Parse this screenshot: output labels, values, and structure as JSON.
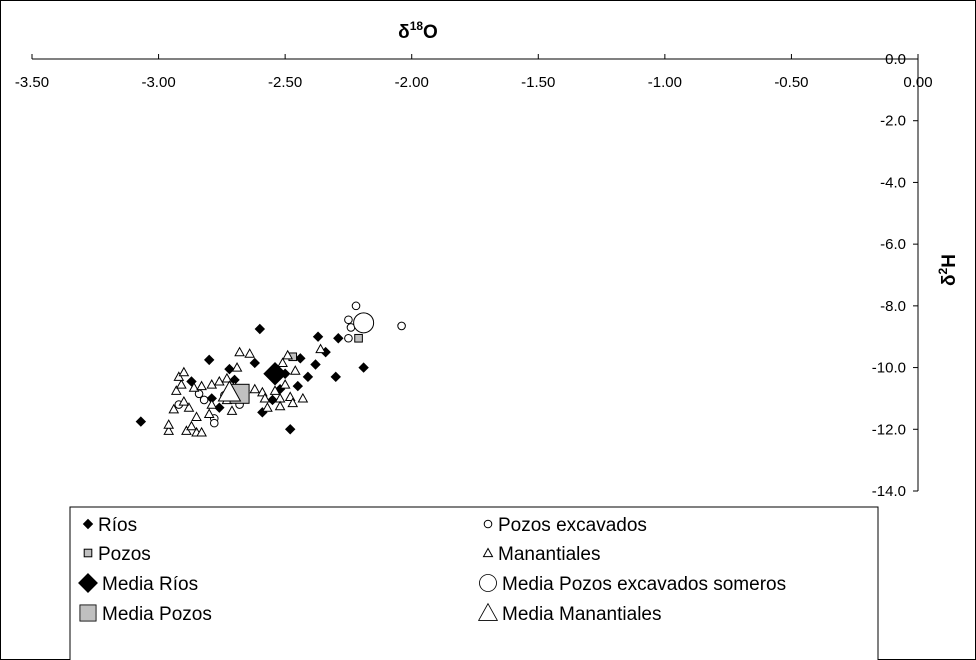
{
  "chart_data": {
    "type": "scatter",
    "xlabel": "δ18O",
    "ylabel": "δ2H",
    "xlim": [
      -3.5,
      0.0
    ],
    "ylim": [
      -14.0,
      0.0
    ],
    "x_ticks": [
      "-3.50",
      "-3.00",
      "-2.50",
      "-2.00",
      "-1.50",
      "-1.00",
      "-0.50",
      "0.00"
    ],
    "x_tick_values": [
      -3.5,
      -3.0,
      -2.5,
      -2.0,
      -1.5,
      -1.0,
      -0.5,
      0.0
    ],
    "y_ticks": [
      "0.0",
      "-2.0",
      "-4.0",
      "-6.0",
      "-8.0",
      "-10.0",
      "-12.0",
      "-14.0"
    ],
    "y_tick_values": [
      0,
      -2,
      -4,
      -6,
      -8,
      -10,
      -12,
      -14
    ],
    "grid": false,
    "legend_position": "bottom",
    "series": [
      {
        "name": "Ríos",
        "marker": "diamond",
        "fill": "#000000",
        "size": "small",
        "points": [
          [
            -3.07,
            -11.75
          ],
          [
            -2.8,
            -9.75
          ],
          [
            -2.6,
            -8.75
          ],
          [
            -2.37,
            -9.0
          ],
          [
            -2.29,
            -9.05
          ],
          [
            -2.19,
            -10.0
          ],
          [
            -2.3,
            -10.3
          ],
          [
            -2.38,
            -9.9
          ],
          [
            -2.41,
            -10.3
          ],
          [
            -2.45,
            -10.6
          ],
          [
            -2.48,
            -12.0
          ],
          [
            -2.59,
            -11.45
          ],
          [
            -2.66,
            -10.75
          ],
          [
            -2.7,
            -10.4
          ],
          [
            -2.72,
            -10.05
          ],
          [
            -2.79,
            -11.0
          ],
          [
            -2.87,
            -10.45
          ],
          [
            -2.62,
            -9.85
          ],
          [
            -2.5,
            -10.2
          ],
          [
            -2.34,
            -9.5
          ],
          [
            -2.55,
            -11.05
          ],
          [
            -2.76,
            -11.3
          ],
          [
            -2.52,
            -10.7
          ],
          [
            -2.44,
            -9.7
          ]
        ]
      },
      {
        "name": "Pozos",
        "marker": "square",
        "fill": "#c0c0c0",
        "size": "small",
        "points": [
          [
            -2.47,
            -9.65
          ],
          [
            -2.21,
            -9.05
          ]
        ]
      },
      {
        "name": "Media Ríos",
        "marker": "diamond",
        "fill": "#000000",
        "size": "large",
        "points": [
          [
            -2.54,
            -10.2
          ]
        ]
      },
      {
        "name": "Media Pozos",
        "marker": "square",
        "fill": "#c0c0c0",
        "size": "large",
        "points": [
          [
            -2.68,
            -10.85
          ]
        ]
      },
      {
        "name": "Pozos excavados",
        "marker": "circle",
        "fill": "#ffffff",
        "size": "small",
        "points": [
          [
            -2.22,
            -8.0
          ],
          [
            -2.25,
            -8.45
          ],
          [
            -2.24,
            -8.7
          ],
          [
            -2.25,
            -9.05
          ],
          [
            -2.04,
            -8.65
          ],
          [
            -2.82,
            -11.05
          ],
          [
            -2.78,
            -11.65
          ],
          [
            -2.78,
            -11.8
          ],
          [
            -2.92,
            -11.2
          ],
          [
            -2.84,
            -10.85
          ],
          [
            -2.68,
            -11.2
          ],
          [
            -2.74,
            -10.9
          ]
        ]
      },
      {
        "name": "Manantiales",
        "marker": "triangle",
        "fill": "#ffffff",
        "size": "small",
        "points": [
          [
            -2.96,
            -12.05
          ],
          [
            -2.96,
            -11.85
          ],
          [
            -2.89,
            -12.05
          ],
          [
            -2.85,
            -12.1
          ],
          [
            -2.83,
            -12.1
          ],
          [
            -2.87,
            -11.9
          ],
          [
            -2.85,
            -11.6
          ],
          [
            -2.8,
            -11.5
          ],
          [
            -2.88,
            -11.3
          ],
          [
            -2.94,
            -11.35
          ],
          [
            -2.9,
            -11.1
          ],
          [
            -2.93,
            -10.75
          ],
          [
            -2.91,
            -10.55
          ],
          [
            -2.92,
            -10.3
          ],
          [
            -2.9,
            -10.15
          ],
          [
            -2.86,
            -10.65
          ],
          [
            -2.83,
            -10.6
          ],
          [
            -2.79,
            -10.55
          ],
          [
            -2.76,
            -10.45
          ],
          [
            -2.73,
            -10.35
          ],
          [
            -2.7,
            -10.6
          ],
          [
            -2.73,
            -11.05
          ],
          [
            -2.68,
            -9.5
          ],
          [
            -2.64,
            -9.55
          ],
          [
            -2.69,
            -10.0
          ],
          [
            -2.62,
            -10.7
          ],
          [
            -2.59,
            -10.8
          ],
          [
            -2.58,
            -11.0
          ],
          [
            -2.57,
            -11.3
          ],
          [
            -2.54,
            -10.75
          ],
          [
            -2.52,
            -11.0
          ],
          [
            -2.5,
            -10.55
          ],
          [
            -2.48,
            -10.95
          ],
          [
            -2.46,
            -10.1
          ],
          [
            -2.49,
            -9.6
          ],
          [
            -2.51,
            -9.85
          ],
          [
            -2.43,
            -11.0
          ],
          [
            -2.52,
            -11.25
          ],
          [
            -2.36,
            -9.4
          ],
          [
            -2.71,
            -11.4
          ],
          [
            -2.79,
            -11.2
          ],
          [
            -2.47,
            -11.15
          ]
        ]
      },
      {
        "name": "Media Pozos excavados someros",
        "marker": "circle",
        "fill": "#ffffff",
        "size": "large",
        "points": [
          [
            -2.19,
            -8.55
          ]
        ]
      },
      {
        "name": "Media Manantiales",
        "marker": "triangle",
        "fill": "#ffffff",
        "size": "large",
        "points": [
          [
            -2.72,
            -10.8
          ]
        ]
      }
    ],
    "legend": [
      {
        "name": "Ríos",
        "marker": "diamond",
        "fill": "#000000",
        "size": "small"
      },
      {
        "name": "Pozos excavados",
        "marker": "circle",
        "fill": "#ffffff",
        "size": "small"
      },
      {
        "name": "Pozos",
        "marker": "square",
        "fill": "#c0c0c0",
        "size": "small"
      },
      {
        "name": "Manantiales",
        "marker": "triangle",
        "fill": "#ffffff",
        "size": "small"
      },
      {
        "name": "Media Ríos",
        "marker": "diamond",
        "fill": "#000000",
        "size": "large"
      },
      {
        "name": "Media Pozos excavados someros",
        "marker": "circle",
        "fill": "#ffffff",
        "size": "large"
      },
      {
        "name": "Media Pozos",
        "marker": "square",
        "fill": "#c0c0c0",
        "size": "large"
      },
      {
        "name": "Media Manantiales",
        "marker": "triangle",
        "fill": "#ffffff",
        "size": "large"
      }
    ]
  }
}
